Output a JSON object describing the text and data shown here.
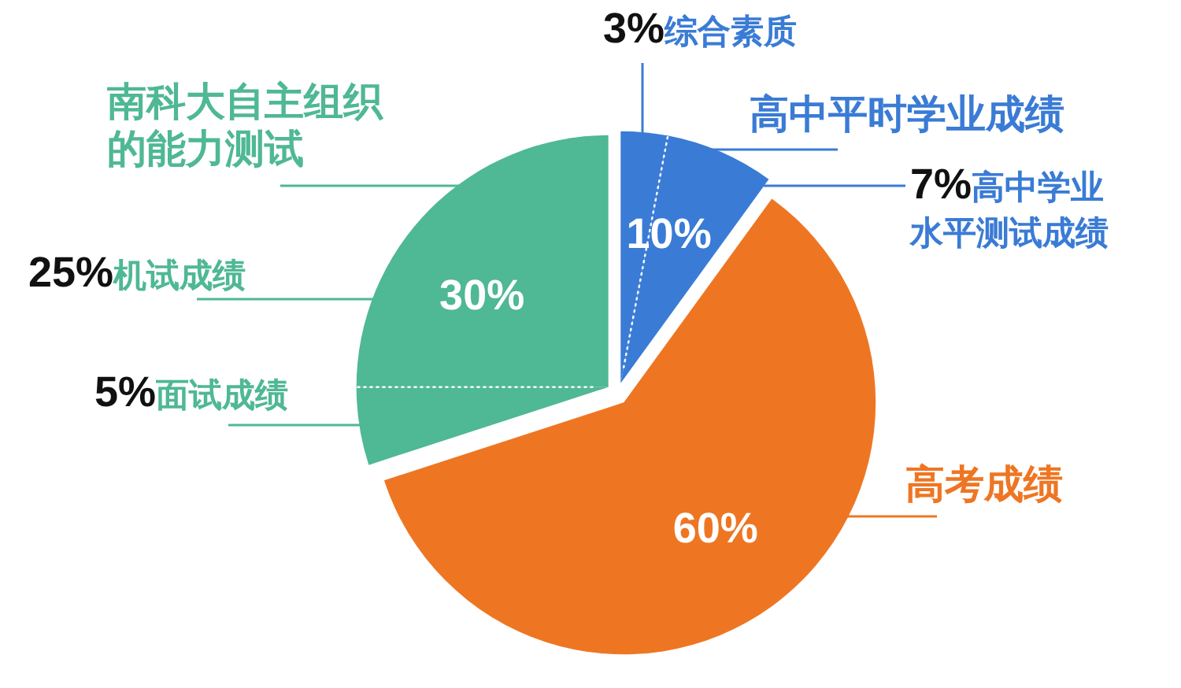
{
  "chart_data": {
    "type": "pie",
    "categories": [
      "综合素质",
      "高中学业水平测试成绩",
      "高考成绩",
      "面试成绩",
      "机试成绩"
    ],
    "values": [
      3,
      7,
      60,
      5,
      25
    ],
    "value_labels": [
      "3%",
      "7%",
      "60%",
      "5%",
      "25%"
    ],
    "colors": [
      "#3a7bd5",
      "#3a7bd5",
      "#ee7623",
      "#4fb894",
      "#4fb894"
    ],
    "annotations": [
      "高中平时学业成绩",
      "10%",
      "南科大自主组织的能力测试",
      "30%"
    ]
  }
}
